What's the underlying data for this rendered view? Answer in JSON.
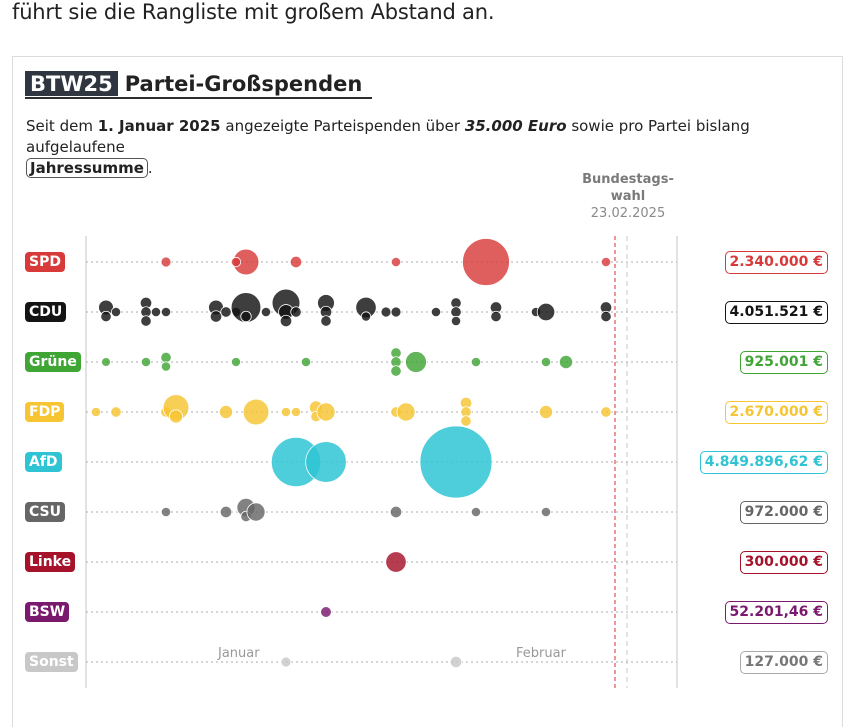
{
  "intro_text": "führt sie die Rangliste mit großem Abstand an.",
  "title": {
    "badge": "BTW25",
    "text": "Partei-Großspenden"
  },
  "subtitle": {
    "t1": "Seit dem ",
    "b1": "1. Januar 2025",
    "t2": " angezeigte Parteispenden über ",
    "b2": "35.000 Euro",
    "t3": " sowie pro Partei bislang aufgelaufene ",
    "pill": "Jahressumme",
    "t4": "."
  },
  "election": {
    "label_1": "Bundestags-",
    "label_2": "wahl",
    "date": "23.02.2025"
  },
  "months": [
    "Januar",
    "Februar"
  ],
  "chart_data": {
    "type": "scatter",
    "title": "Partei-Großspenden",
    "x_range": [
      "2025-01-01",
      "2025-03-02"
    ],
    "x_tick_labels": [
      "Januar",
      "Februar"
    ],
    "election_date": "2025-02-23",
    "parties": [
      {
        "name": "SPD",
        "color": "#d83a3a",
        "total": "2.340.000 €",
        "donations": [
          {
            "x": "2025-01-09",
            "a": 45000
          },
          {
            "x": "2025-01-17",
            "a": 300000
          },
          {
            "x": "2025-01-16",
            "a": 40000
          },
          {
            "x": "2025-01-22",
            "a": 60000
          },
          {
            "x": "2025-02-01",
            "a": 40000
          },
          {
            "x": "2025-02-10",
            "a": 1000000
          },
          {
            "x": "2025-02-22",
            "a": 40000
          }
        ]
      },
      {
        "name": "CDU",
        "color": "#141414",
        "total": "4.051.521 €",
        "donations": [
          {
            "x": "2025-01-03",
            "a": 100000
          },
          {
            "x": "2025-01-03",
            "a": 50000
          },
          {
            "x": "2025-01-04",
            "a": 40000
          },
          {
            "x": "2025-01-07",
            "a": 60000
          },
          {
            "x": "2025-01-07",
            "a": 50000
          },
          {
            "x": "2025-01-07",
            "a": 50000
          },
          {
            "x": "2025-01-08",
            "a": 40000
          },
          {
            "x": "2025-01-09",
            "a": 40000
          },
          {
            "x": "2025-01-14",
            "a": 100000
          },
          {
            "x": "2025-01-14",
            "a": 60000
          },
          {
            "x": "2025-01-15",
            "a": 50000
          },
          {
            "x": "2025-01-16",
            "a": 40000
          },
          {
            "x": "2025-01-17",
            "a": 400000
          },
          {
            "x": "2025-01-17",
            "a": 50000
          },
          {
            "x": "2025-01-19",
            "a": 40000
          },
          {
            "x": "2025-01-21",
            "a": 350000
          },
          {
            "x": "2025-01-21",
            "a": 100000
          },
          {
            "x": "2025-01-21",
            "a": 60000
          },
          {
            "x": "2025-01-22",
            "a": 50000
          },
          {
            "x": "2025-01-25",
            "a": 130000
          },
          {
            "x": "2025-01-25",
            "a": 60000
          },
          {
            "x": "2025-01-25",
            "a": 50000
          },
          {
            "x": "2025-01-29",
            "a": 190000
          },
          {
            "x": "2025-01-29",
            "a": 40000
          },
          {
            "x": "2025-01-31",
            "a": 45000
          },
          {
            "x": "2025-02-01",
            "a": 45000
          },
          {
            "x": "2025-02-05",
            "a": 40000
          },
          {
            "x": "2025-02-07",
            "a": 40000
          },
          {
            "x": "2025-02-07",
            "a": 50000
          },
          {
            "x": "2025-02-07",
            "a": 50000
          },
          {
            "x": "2025-02-11",
            "a": 60000
          },
          {
            "x": "2025-02-11",
            "a": 50000
          },
          {
            "x": "2025-02-15",
            "a": 40000
          },
          {
            "x": "2025-02-16",
            "a": 140000
          },
          {
            "x": "2025-02-22",
            "a": 60000
          },
          {
            "x": "2025-02-22",
            "a": 50000
          }
        ]
      },
      {
        "name": "Grüne",
        "color": "#3fa535",
        "total": "925.001 €",
        "donations": [
          {
            "x": "2025-01-03",
            "a": 36000
          },
          {
            "x": "2025-01-07",
            "a": 40000
          },
          {
            "x": "2025-01-09",
            "a": 50000
          },
          {
            "x": "2025-01-09",
            "a": 40000
          },
          {
            "x": "2025-01-16",
            "a": 38000
          },
          {
            "x": "2025-01-23",
            "a": 40000
          },
          {
            "x": "2025-02-01",
            "a": 50000
          },
          {
            "x": "2025-02-01",
            "a": 50000
          },
          {
            "x": "2025-02-01",
            "a": 50000
          },
          {
            "x": "2025-02-03",
            "a": 200000
          },
          {
            "x": "2025-02-09",
            "a": 40000
          },
          {
            "x": "2025-02-16",
            "a": 40000
          },
          {
            "x": "2025-02-18",
            "a": 80000
          }
        ]
      },
      {
        "name": "FDP",
        "color": "#f6c531",
        "total": "2.670.000 €",
        "donations": [
          {
            "x": "2025-01-02",
            "a": 40000
          },
          {
            "x": "2025-01-04",
            "a": 50000
          },
          {
            "x": "2025-01-09",
            "a": 50000
          },
          {
            "x": "2025-01-10",
            "a": 300000
          },
          {
            "x": "2025-01-10",
            "a": 80000
          },
          {
            "x": "2025-01-15",
            "a": 80000
          },
          {
            "x": "2025-01-18",
            "a": 300000
          },
          {
            "x": "2025-01-21",
            "a": 40000
          },
          {
            "x": "2025-01-22",
            "a": 40000
          },
          {
            "x": "2025-01-24",
            "a": 80000
          },
          {
            "x": "2025-01-24",
            "a": 50000
          },
          {
            "x": "2025-01-25",
            "a": 150000
          },
          {
            "x": "2025-02-01",
            "a": 50000
          },
          {
            "x": "2025-02-02",
            "a": 150000
          },
          {
            "x": "2025-02-08",
            "a": 60000
          },
          {
            "x": "2025-02-08",
            "a": 50000
          },
          {
            "x": "2025-02-08",
            "a": 50000
          },
          {
            "x": "2025-02-16",
            "a": 80000
          },
          {
            "x": "2025-02-22",
            "a": 50000
          }
        ]
      },
      {
        "name": "AfD",
        "color": "#2fc4d4",
        "total": "4.849.896,62 €",
        "donations": [
          {
            "x": "2025-01-22",
            "a": 1100000
          },
          {
            "x": "2025-01-25",
            "a": 750000
          },
          {
            "x": "2025-02-07",
            "a": 2350000
          }
        ]
      },
      {
        "name": "CSU",
        "color": "#666666",
        "total": "972.000 €",
        "donations": [
          {
            "x": "2025-01-09",
            "a": 40000
          },
          {
            "x": "2025-01-15",
            "a": 60000
          },
          {
            "x": "2025-01-17",
            "a": 150000
          },
          {
            "x": "2025-01-17",
            "a": 50000
          },
          {
            "x": "2025-01-18",
            "a": 150000
          },
          {
            "x": "2025-02-01",
            "a": 60000
          },
          {
            "x": "2025-02-09",
            "a": 40000
          },
          {
            "x": "2025-02-16",
            "a": 40000
          }
        ]
      },
      {
        "name": "Linke",
        "color": "#a6122a",
        "total": "300.000 €",
        "donations": [
          {
            "x": "2025-02-01",
            "a": 190000
          }
        ]
      },
      {
        "name": "BSW",
        "color": "#7a1a6e",
        "total": "52.201,46 €",
        "donations": [
          {
            "x": "2025-01-25",
            "a": 52201
          }
        ]
      },
      {
        "name": "Sonst",
        "color": "#c8c8c8",
        "total": "127.000 €",
        "donations": [
          {
            "x": "2025-01-21",
            "a": 45000
          },
          {
            "x": "2025-02-07",
            "a": 60000
          }
        ]
      }
    ]
  }
}
